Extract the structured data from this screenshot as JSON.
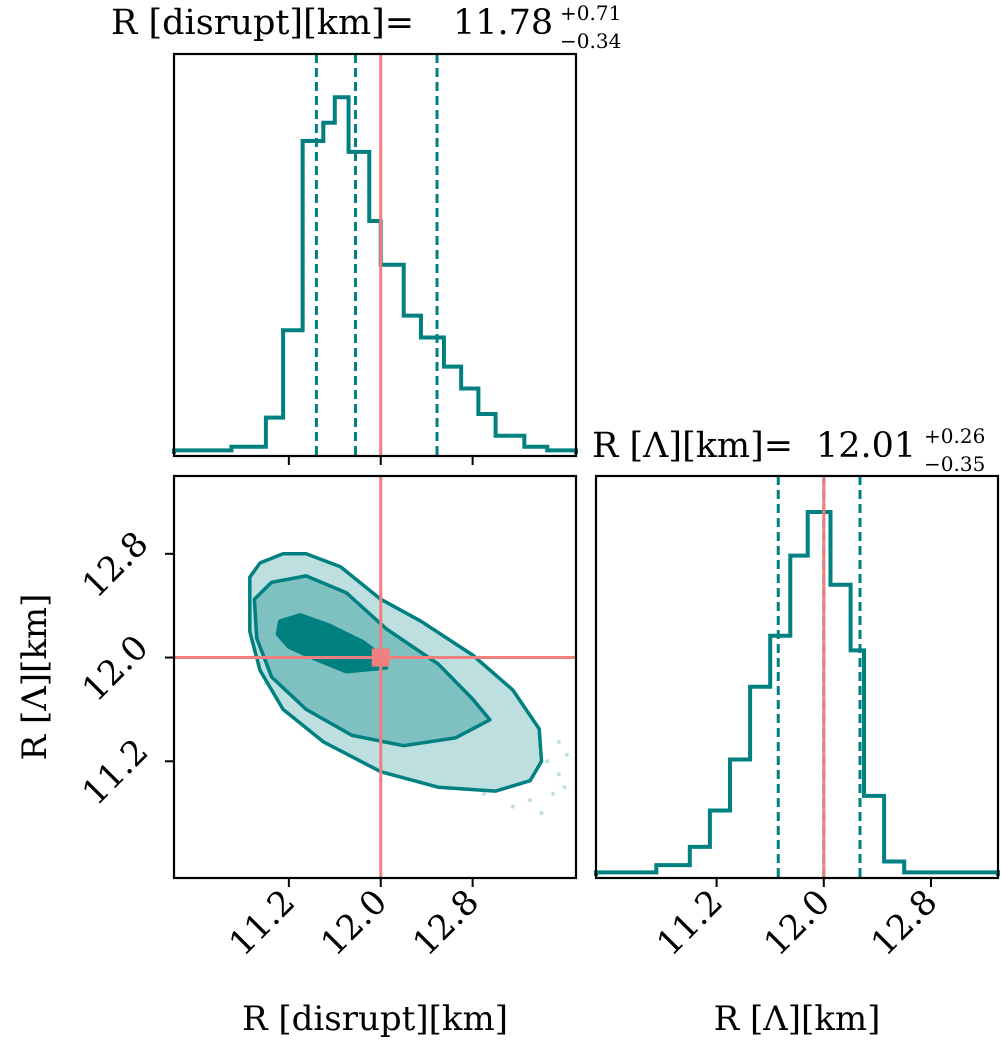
{
  "colors": {
    "series": "#008080",
    "truth": "#f08080",
    "fill_outer": "#bddfdf",
    "fill_mid": "#7fc0c0",
    "fill_inner": "#008080",
    "frame": "#000000"
  },
  "chart_data": [
    {
      "type": "histogram",
      "panel": "top-left",
      "title": {
        "prefix": "R [disrupt][km]=",
        "value": "11.78",
        "upper": "+0.71",
        "lower": "−0.34"
      },
      "xlim": [
        10.2,
        13.7
      ],
      "x_ticks": [
        11.2,
        12.0,
        12.8
      ],
      "bin_edges": [
        10.2,
        10.7,
        11.0,
        11.15,
        11.32,
        11.5,
        11.6,
        11.72,
        11.9,
        12.0,
        12.2,
        12.35,
        12.55,
        12.7,
        12.85,
        13.0,
        13.25,
        13.45,
        13.7
      ],
      "counts": [
        0.01,
        0.02,
        0.1,
        0.34,
        0.86,
        0.91,
        0.98,
        0.83,
        0.64,
        0.52,
        0.38,
        0.32,
        0.24,
        0.18,
        0.11,
        0.05,
        0.02,
        0.01
      ],
      "quantiles": [
        11.44,
        11.78,
        12.49
      ],
      "truth": 12.0
    },
    {
      "type": "contour",
      "panel": "bottom-left",
      "xlabel": "R [disrupt][km]",
      "ylabel": "R [Λ][km]",
      "xlim": [
        10.2,
        13.7
      ],
      "ylim": [
        10.3,
        13.4
      ],
      "x_ticks": [
        11.2,
        12.0,
        12.8
      ],
      "y_ticks": [
        11.2,
        12.0,
        12.8
      ],
      "truth": {
        "x": 12.0,
        "y": 12.0
      },
      "levels": [
        {
          "name": "outer",
          "points": [
            [
              10.86,
              12.62
            ],
            [
              10.95,
              12.73
            ],
            [
              11.15,
              12.8
            ],
            [
              11.35,
              12.8
            ],
            [
              11.65,
              12.7
            ],
            [
              12.0,
              12.45
            ],
            [
              12.35,
              12.28
            ],
            [
              12.8,
              12.02
            ],
            [
              13.15,
              11.75
            ],
            [
              13.38,
              11.45
            ],
            [
              13.4,
              11.2
            ],
            [
              13.3,
              11.05
            ],
            [
              13.0,
              10.97
            ],
            [
              12.5,
              11.0
            ],
            [
              12.0,
              11.12
            ],
            [
              11.5,
              11.35
            ],
            [
              11.15,
              11.6
            ],
            [
              10.95,
              11.9
            ],
            [
              10.86,
              12.2
            ]
          ]
        },
        {
          "name": "mid",
          "points": [
            [
              10.9,
              12.45
            ],
            [
              11.05,
              12.58
            ],
            [
              11.35,
              12.63
            ],
            [
              11.7,
              12.5
            ],
            [
              12.05,
              12.22
            ],
            [
              12.5,
              11.95
            ],
            [
              12.8,
              11.68
            ],
            [
              12.95,
              11.52
            ],
            [
              12.65,
              11.38
            ],
            [
              12.2,
              11.32
            ],
            [
              11.75,
              11.4
            ],
            [
              11.35,
              11.6
            ],
            [
              11.05,
              11.85
            ],
            [
              10.92,
              12.15
            ]
          ]
        },
        {
          "name": "inner",
          "points": [
            [
              11.12,
              12.28
            ],
            [
              11.3,
              12.33
            ],
            [
              11.55,
              12.25
            ],
            [
              11.85,
              12.12
            ],
            [
              12.0,
              12.02
            ],
            [
              12.05,
              11.92
            ],
            [
              11.7,
              11.89
            ],
            [
              11.45,
              11.98
            ],
            [
              11.2,
              12.08
            ],
            [
              11.1,
              12.18
            ]
          ]
        }
      ],
      "scatter": [
        [
          12.3,
          11.4
        ],
        [
          12.6,
          11.3
        ],
        [
          12.8,
          11.15
        ],
        [
          13.0,
          11.0
        ],
        [
          13.1,
          11.1
        ],
        [
          13.2,
          11.2
        ],
        [
          13.3,
          10.9
        ],
        [
          13.45,
          11.2
        ],
        [
          13.55,
          11.1
        ],
        [
          13.6,
          11.0
        ],
        [
          13.5,
          10.95
        ],
        [
          13.4,
          10.8
        ],
        [
          12.9,
          10.95
        ],
        [
          12.7,
          11.05
        ],
        [
          13.35,
          11.35
        ],
        [
          13.55,
          11.35
        ],
        [
          13.62,
          11.25
        ],
        [
          12.4,
          11.2
        ],
        [
          11.0,
          11.8
        ],
        [
          10.9,
          12.05
        ],
        [
          12.0,
          11.05
        ],
        [
          13.15,
          10.85
        ]
      ]
    },
    {
      "type": "histogram",
      "panel": "bottom-right",
      "title": {
        "prefix": "R [Λ][km]=",
        "value": "12.01",
        "upper": "+0.26",
        "lower": "−0.35"
      },
      "xlabel": "R [Λ][km]",
      "xlim": [
        10.3,
        13.3
      ],
      "x_ticks": [
        11.2,
        12.0,
        12.8
      ],
      "bin_edges": [
        10.3,
        10.75,
        11.0,
        11.15,
        11.3,
        11.45,
        11.6,
        11.75,
        11.88,
        12.05,
        12.2,
        12.3,
        12.45,
        12.6,
        13.3
      ],
      "counts": [
        0.01,
        0.03,
        0.08,
        0.18,
        0.32,
        0.52,
        0.66,
        0.88,
        1.0,
        0.8,
        0.62,
        0.22,
        0.04,
        0.01
      ],
      "quantiles": [
        11.66,
        12.0,
        12.27
      ],
      "truth": 12.0
    }
  ]
}
